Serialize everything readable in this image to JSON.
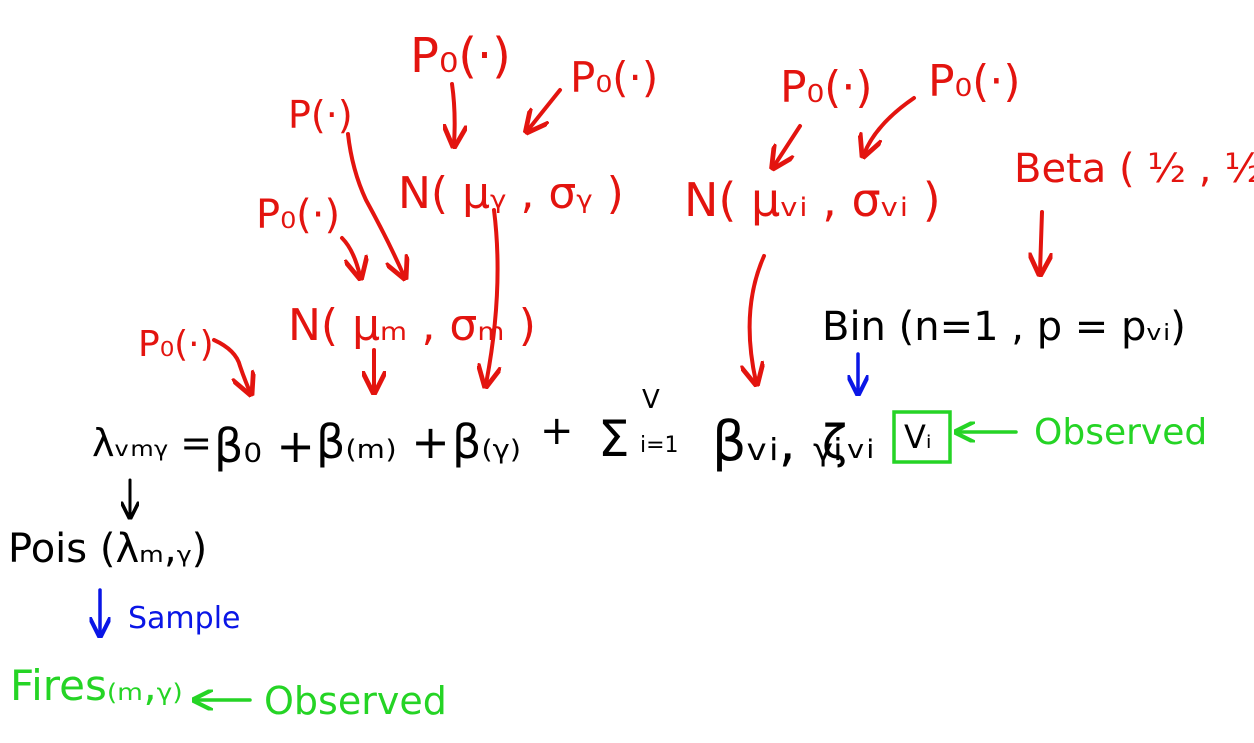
{
  "colors": {
    "prior": "#e3140f",
    "model": "#000000",
    "sample": "#0a16e6",
    "observed": "#25d425"
  },
  "priors": {
    "p0_top_center": "P₀(·)",
    "p0_top_right": "P₀(·)",
    "p0_upper_left": "P(·)",
    "p0_mid_left": "P₀(·)",
    "p0_left": "P₀(·)",
    "p0_right_a": "P₀(·)",
    "p0_right_b": "P₀(·)",
    "normal_y": "N( μᵧ , σᵧ )",
    "normal_m": "N( μₘ , σₘ )",
    "normal_vi": "N( μᵥᵢ , σᵥᵢ )",
    "beta": "Beta ( ½ , ½ )"
  },
  "model": {
    "lambda": "λᵥₘᵧ =",
    "beta0": "β₀ +",
    "beta_m": "β₍ₘ₎ +",
    "beta_y": "β₍ᵧ₎",
    "plus": "+",
    "sum": "Σ",
    "sum_upper": "V",
    "sum_lower": "i=1",
    "beta_vi": "βᵥᵢ, ᵧᵢ",
    "zeta": "ζᵥᵢ",
    "vi_box": "Vᵢ",
    "bin": "Bin (n=1 , p = pᵥᵢ)",
    "pois": "Pois (λₘ,ᵧ)"
  },
  "annotations": {
    "sample": "Sample",
    "fires": "Fires₍ₘ,ᵧ₎",
    "observed_top": "Observed",
    "observed_bottom": "Observed"
  }
}
